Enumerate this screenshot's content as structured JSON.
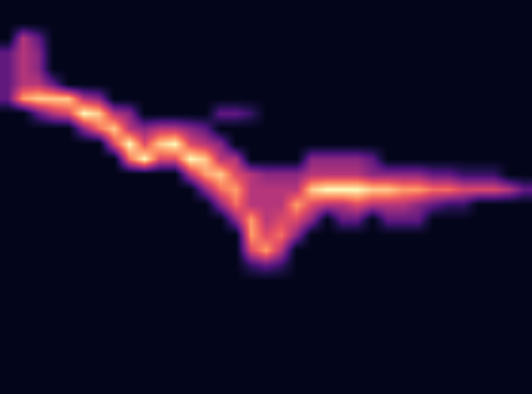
{
  "chart_data": {
    "type": "heatmap",
    "tick_labels": false,
    "zlim": [
      0,
      10
    ],
    "z": [
      [
        0,
        0,
        0,
        0,
        0,
        0,
        0,
        0,
        0,
        0,
        0,
        0,
        0,
        0,
        0,
        0,
        0,
        0,
        0,
        0,
        0,
        0,
        0,
        0,
        0,
        0,
        0,
        0,
        0,
        0,
        0,
        0,
        0,
        0,
        0
      ],
      [
        0,
        0,
        0,
        0,
        0,
        0,
        0,
        0,
        0,
        0,
        0,
        0,
        0,
        0,
        0,
        0,
        0,
        0,
        0,
        0,
        0,
        0,
        0,
        0,
        0,
        0,
        0,
        0,
        0,
        0,
        0,
        0,
        0,
        0,
        0
      ],
      [
        0,
        5,
        3,
        0,
        0,
        0,
        0,
        0,
        0,
        0,
        0,
        0,
        0,
        0,
        0,
        0,
        0,
        0,
        0,
        0,
        0,
        0,
        0,
        0,
        0,
        0,
        0,
        0,
        0,
        0,
        0,
        0,
        0,
        0,
        0
      ],
      [
        3,
        5,
        4,
        0,
        0,
        0,
        0,
        0,
        0,
        0,
        0,
        0,
        0,
        0,
        0,
        0,
        0,
        0,
        0,
        0,
        0,
        0,
        0,
        0,
        0,
        0,
        0,
        0,
        0,
        0,
        0,
        0,
        0,
        0,
        0
      ],
      [
        3,
        5,
        4,
        0,
        0,
        0,
        0,
        0,
        0,
        0,
        0,
        0,
        0,
        0,
        0,
        0,
        0,
        0,
        0,
        0,
        0,
        0,
        0,
        0,
        0,
        0,
        0,
        0,
        0,
        0,
        0,
        0,
        0,
        0,
        0
      ],
      [
        3,
        5,
        5,
        3,
        0,
        0,
        0,
        0,
        0,
        0,
        0,
        0,
        0,
        0,
        0,
        0,
        0,
        0,
        0,
        0,
        0,
        0,
        0,
        0,
        0,
        0,
        0,
        0,
        0,
        0,
        0,
        0,
        0,
        0,
        0
      ],
      [
        3,
        8,
        9,
        9,
        9,
        5,
        4,
        0,
        0,
        0,
        0,
        0,
        0,
        0,
        0,
        0,
        0,
        0,
        0,
        0,
        0,
        0,
        0,
        0,
        0,
        0,
        0,
        0,
        0,
        0,
        0,
        0,
        0,
        0,
        0
      ],
      [
        0,
        0,
        3,
        5,
        6,
        10,
        9,
        5,
        4,
        0,
        0,
        0,
        0,
        0,
        3,
        3,
        2,
        0,
        0,
        0,
        0,
        0,
        0,
        0,
        0,
        0,
        0,
        0,
        0,
        0,
        0,
        0,
        0,
        0,
        0
      ],
      [
        0,
        0,
        0,
        0,
        0,
        4,
        7,
        9,
        5,
        4,
        5,
        5,
        4,
        3,
        0,
        0,
        0,
        0,
        0,
        0,
        0,
        0,
        0,
        0,
        0,
        0,
        0,
        0,
        0,
        0,
        0,
        0,
        0,
        0,
        0
      ],
      [
        0,
        0,
        0,
        0,
        0,
        0,
        0,
        6,
        10,
        6,
        9,
        10,
        6,
        5,
        4,
        0,
        0,
        0,
        0,
        0,
        0,
        0,
        0,
        0,
        0,
        0,
        0,
        0,
        0,
        0,
        0,
        0,
        0,
        0,
        0
      ],
      [
        0,
        0,
        0,
        0,
        0,
        0,
        0,
        0,
        7,
        10,
        6,
        6,
        10,
        9,
        5,
        5,
        0,
        0,
        0,
        0,
        4,
        4,
        4,
        4,
        3,
        0,
        0,
        0,
        0,
        0,
        0,
        0,
        0,
        0,
        0
      ],
      [
        0,
        0,
        0,
        0,
        0,
        0,
        0,
        0,
        0,
        0,
        0,
        0,
        5,
        8,
        9,
        6,
        5,
        4,
        4,
        4,
        5,
        5,
        5,
        5,
        4,
        4,
        4,
        4,
        3,
        3,
        2,
        2,
        2,
        0,
        0
      ],
      [
        0,
        0,
        0,
        0,
        0,
        0,
        0,
        0,
        0,
        0,
        0,
        0,
        0,
        4,
        7,
        8,
        5,
        5,
        5,
        5,
        9,
        10,
        10,
        10,
        9,
        9,
        8,
        8,
        7,
        7,
        6,
        6,
        6,
        5,
        3
      ],
      [
        0,
        0,
        0,
        0,
        0,
        0,
        0,
        0,
        0,
        0,
        0,
        0,
        0,
        0,
        4,
        7,
        5,
        5,
        5,
        8,
        6,
        5,
        5,
        6,
        5,
        5,
        5,
        4,
        3,
        2,
        2,
        0,
        0,
        0,
        0
      ],
      [
        0,
        0,
        0,
        0,
        0,
        0,
        0,
        0,
        0,
        0,
        0,
        0,
        0,
        0,
        0,
        4,
        8,
        5,
        6,
        6,
        4,
        0,
        3,
        3,
        0,
        3,
        3,
        3,
        0,
        0,
        0,
        0,
        0,
        0,
        0
      ],
      [
        0,
        0,
        0,
        0,
        0,
        0,
        0,
        0,
        0,
        0,
        0,
        0,
        0,
        0,
        0,
        0,
        8,
        6,
        7,
        4,
        0,
        0,
        0,
        0,
        0,
        0,
        0,
        0,
        0,
        0,
        0,
        0,
        0,
        0,
        0
      ],
      [
        0,
        0,
        0,
        0,
        0,
        0,
        0,
        0,
        0,
        0,
        0,
        0,
        0,
        0,
        0,
        0,
        6,
        8,
        5,
        0,
        0,
        0,
        0,
        0,
        0,
        0,
        0,
        0,
        0,
        0,
        0,
        0,
        0,
        0,
        0
      ],
      [
        0,
        0,
        0,
        0,
        0,
        0,
        0,
        0,
        0,
        0,
        0,
        0,
        0,
        0,
        0,
        0,
        2,
        3,
        2,
        0,
        0,
        0,
        0,
        0,
        0,
        0,
        0,
        0,
        0,
        0,
        0,
        0,
        0,
        0,
        0
      ],
      [
        0,
        0,
        0,
        0,
        0,
        0,
        0,
        0,
        0,
        0,
        0,
        0,
        0,
        0,
        0,
        0,
        0,
        0,
        0,
        0,
        0,
        0,
        0,
        0,
        0,
        0,
        0,
        0,
        0,
        0,
        0,
        0,
        0,
        0,
        0
      ],
      [
        0,
        0,
        0,
        0,
        0,
        0,
        0,
        0,
        0,
        0,
        0,
        0,
        0,
        0,
        0,
        0,
        0,
        0,
        0,
        0,
        0,
        0,
        0,
        0,
        0,
        0,
        0,
        0,
        0,
        0,
        0,
        0,
        0,
        0,
        0
      ],
      [
        0,
        0,
        0,
        0,
        0,
        0,
        0,
        0,
        0,
        0,
        0,
        0,
        0,
        0,
        0,
        0,
        0,
        0,
        0,
        0,
        0,
        0,
        0,
        0,
        0,
        0,
        0,
        0,
        0,
        0,
        0,
        0,
        0,
        0,
        0
      ],
      [
        0,
        0,
        0,
        0,
        0,
        0,
        0,
        0,
        0,
        0,
        0,
        0,
        0,
        0,
        0,
        0,
        0,
        0,
        0,
        0,
        0,
        0,
        0,
        0,
        0,
        0,
        0,
        0,
        0,
        0,
        0,
        0,
        0,
        0,
        0
      ],
      [
        0,
        0,
        0,
        0,
        0,
        0,
        0,
        0,
        0,
        0,
        0,
        0,
        0,
        0,
        0,
        0,
        0,
        0,
        0,
        0,
        0,
        0,
        0,
        0,
        0,
        0,
        0,
        0,
        0,
        0,
        0,
        0,
        0,
        0,
        0
      ],
      [
        0,
        0,
        0,
        0,
        0,
        0,
        0,
        0,
        0,
        0,
        0,
        0,
        0,
        0,
        0,
        0,
        0,
        0,
        0,
        0,
        0,
        0,
        0,
        0,
        0,
        0,
        0,
        0,
        0,
        0,
        0,
        0,
        0,
        0,
        0
      ],
      [
        0,
        0,
        0,
        0,
        0,
        0,
        0,
        0,
        0,
        0,
        0,
        0,
        0,
        0,
        0,
        0,
        0,
        0,
        0,
        0,
        0,
        0,
        0,
        0,
        0,
        0,
        0,
        0,
        0,
        0,
        0,
        0,
        0,
        0,
        0
      ],
      [
        0,
        0,
        0,
        0,
        0,
        0,
        0,
        0,
        0,
        0,
        0,
        0,
        0,
        0,
        0,
        0,
        0,
        0,
        0,
        0,
        0,
        0,
        0,
        0,
        0,
        0,
        0,
        0,
        0,
        0,
        0,
        0,
        0,
        0,
        0
      ]
    ]
  }
}
